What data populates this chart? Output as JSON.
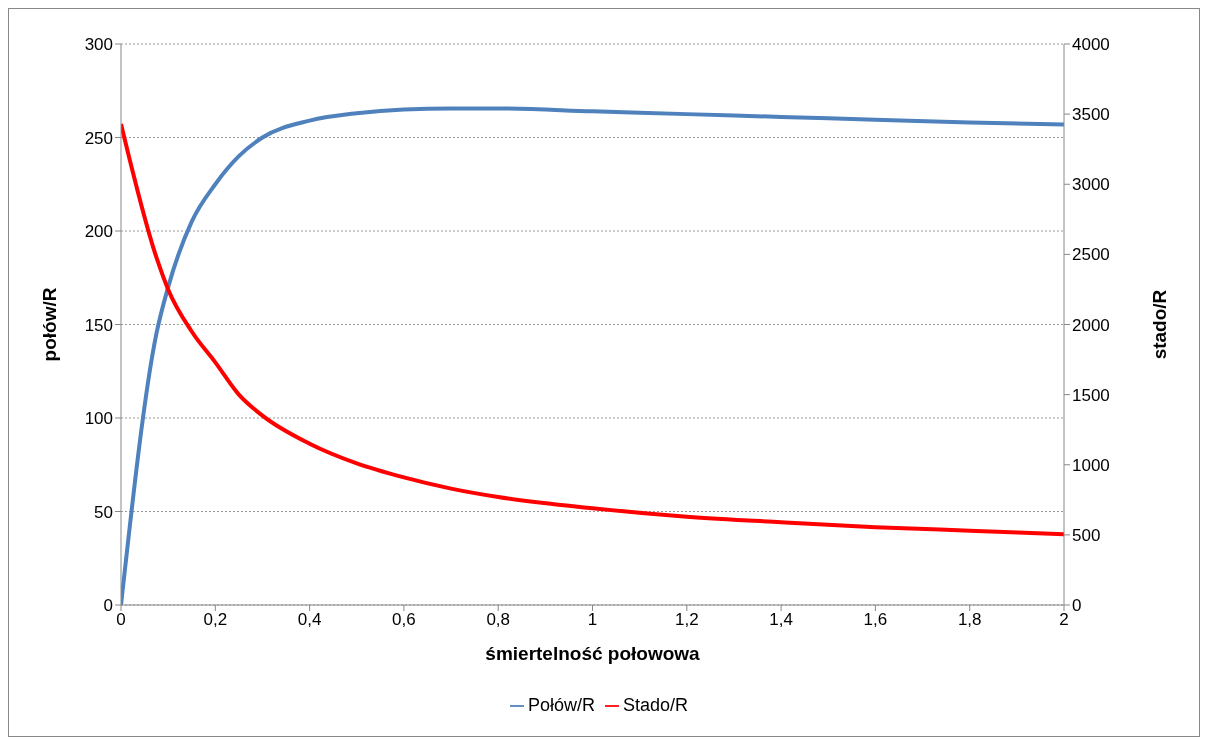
{
  "chart_data": {
    "type": "line",
    "xlabel": "śmiertelność połowowa",
    "ylabel": "połów/R",
    "y2label": "stado/R",
    "x": [
      0,
      0.075,
      0.1,
      0.15,
      0.2,
      0.25,
      0.3,
      0.4,
      0.5,
      0.6,
      0.7,
      0.8,
      1,
      1.2,
      1.4,
      1.6,
      1.8,
      2
    ],
    "series": [
      {
        "name": "Połów/R",
        "color": "#4f81bd",
        "values": [
          0,
          145,
          170,
          205,
          225,
          240,
          250,
          259,
          263,
          265,
          265.5,
          265.5,
          264,
          262.5,
          261,
          259.5,
          258,
          257
        ]
      },
      {
        "name": "Stado/R",
        "color": "#ff0000",
        "axis": "y2",
        "values": [
          3430,
          2480,
          2250,
          1950,
          1730,
          1500,
          1350,
          1150,
          1010,
          910,
          830,
          770,
          690,
          630,
          590,
          555,
          530,
          505
        ]
      }
    ],
    "xlim": [
      0,
      2
    ],
    "xticks": [
      {
        "value": 0,
        "label": "0"
      },
      {
        "value": 0.2,
        "label": "0,2"
      },
      {
        "value": 0.4,
        "label": "0,4"
      },
      {
        "value": 0.6,
        "label": "0,6"
      },
      {
        "value": 0.8,
        "label": "0,8"
      },
      {
        "value": 1,
        "label": "1"
      },
      {
        "value": 1.2,
        "label": "1,2"
      },
      {
        "value": 1.4,
        "label": "1,4"
      },
      {
        "value": 1.6,
        "label": "1,6"
      },
      {
        "value": 1.8,
        "label": "1,8"
      },
      {
        "value": 2,
        "label": "2"
      }
    ],
    "ylim": [
      0,
      300
    ],
    "yticks": [
      0,
      50,
      100,
      150,
      200,
      250,
      300
    ],
    "y2lim": [
      0,
      4000
    ],
    "y2ticks": [
      0,
      500,
      1000,
      1500,
      2000,
      2500,
      3000,
      3500,
      4000
    ],
    "grid": "y",
    "legend": "bottom",
    "marker": "none",
    "line_style": "solid"
  }
}
